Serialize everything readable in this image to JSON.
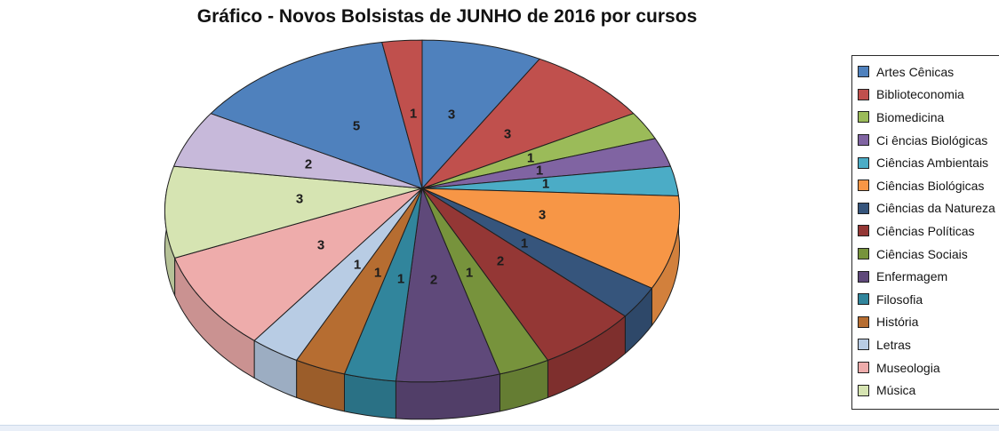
{
  "chart_data": {
    "type": "pie",
    "variant": "3d",
    "title": "Gráfico - Novos Bolsistas de JUNHO de 2016 por cursos",
    "legend_position": "right",
    "data_labels": "value",
    "total": 35,
    "legend_visible_count": 15,
    "slices": [
      {
        "label": "Artes Cênicas",
        "value": 3,
        "color": "#4F81BD"
      },
      {
        "label": "Biblioteconomia",
        "value": 3,
        "color": "#C0504D"
      },
      {
        "label": "Biomedicina",
        "value": 1,
        "color": "#9BBB59"
      },
      {
        "label": "Ci ências Biológicas",
        "value": 1,
        "color": "#8064A2"
      },
      {
        "label": "Ciências Ambientais",
        "value": 1,
        "color": "#4BACC6"
      },
      {
        "label": "Ciências Biológicas",
        "value": 3,
        "color": "#F79646"
      },
      {
        "label": "Ciências da Natureza",
        "value": 1,
        "color": "#36557C"
      },
      {
        "label": "Ciências Políticas",
        "value": 2,
        "color": "#943735"
      },
      {
        "label": "Ciências Sociais",
        "value": 1,
        "color": "#77933C"
      },
      {
        "label": "Enfermagem",
        "value": 2,
        "color": "#5F497A"
      },
      {
        "label": "Filosofia",
        "value": 1,
        "color": "#31859C"
      },
      {
        "label": "História",
        "value": 1,
        "color": "#B66D31"
      },
      {
        "label": "Letras",
        "value": 1,
        "color": "#B8CCE4"
      },
      {
        "label": "Museologia",
        "value": 3,
        "color": "#EEACAB"
      },
      {
        "label": "Música",
        "value": 3,
        "color": "#D6E4B2"
      },
      {
        "label": "",
        "value": 2,
        "color": "#C7B9DA"
      },
      {
        "label": "",
        "value": 5,
        "color": "#4F81BD"
      },
      {
        "label": "",
        "value": 1,
        "color": "#C0504D"
      }
    ]
  },
  "colors": {
    "outline": "#1f1f1f",
    "background": "#ffffff",
    "bottom_strip": "#e9eff8"
  }
}
